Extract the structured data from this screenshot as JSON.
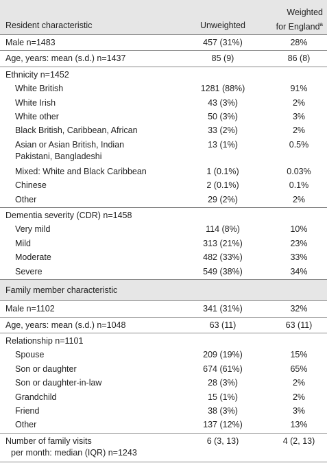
{
  "table": {
    "header": {
      "characteristic": "Resident characteristic",
      "unweighted": "Unweighted",
      "weighted": [
        "Weighted",
        "for England"
      ],
      "weighted_note": "a"
    },
    "resident": [
      {
        "label": [
          "Male n=1483"
        ],
        "unweighted": "457 (31%)",
        "weighted": "28%"
      },
      {
        "label": [
          "Age, years: mean (s.d.) n=1437"
        ],
        "unweighted": "85 (9)",
        "weighted": "86 (8)"
      },
      {
        "label": [
          "Ethnicity n=1452"
        ],
        "items": [
          {
            "label": [
              "White British"
            ],
            "unweighted": "1281 (88%)",
            "weighted": "91%"
          },
          {
            "label": [
              "White Irish"
            ],
            "unweighted": "43 (3%)",
            "weighted": "2%"
          },
          {
            "label": [
              "White other"
            ],
            "unweighted": "50 (3%)",
            "weighted": "3%"
          },
          {
            "label": [
              "Black British, Caribbean, African"
            ],
            "unweighted": "33 (2%)",
            "weighted": "2%"
          },
          {
            "label": [
              "Asian or Asian British, Indian",
              "Pakistani, Bangladeshi"
            ],
            "unweighted": "13 (1%)",
            "weighted": "0.5%"
          },
          {
            "label": [
              "Mixed: White and Black Caribbean"
            ],
            "unweighted": "1 (0.1%)",
            "weighted": "0.03%"
          },
          {
            "label": [
              "Chinese"
            ],
            "unweighted": "2 (0.1%)",
            "weighted": "0.1%"
          },
          {
            "label": [
              "Other"
            ],
            "unweighted": "29 (2%)",
            "weighted": "2%"
          }
        ]
      },
      {
        "label": [
          "Dementia severity (CDR) n=1458"
        ],
        "items": [
          {
            "label": [
              "Very mild"
            ],
            "unweighted": "114 (8%)",
            "weighted": "10%"
          },
          {
            "label": [
              "Mild"
            ],
            "unweighted": "313 (21%)",
            "weighted": "23%"
          },
          {
            "label": [
              "Moderate"
            ],
            "unweighted": "482 (33%)",
            "weighted": "33%"
          },
          {
            "label": [
              "Severe"
            ],
            "unweighted": "549 (38%)",
            "weighted": "34%"
          }
        ]
      }
    ],
    "family_header": "Family member characteristic",
    "family": [
      {
        "label": [
          "Male n=1102"
        ],
        "unweighted": "341 (31%)",
        "weighted": "32%"
      },
      {
        "label": [
          "Age, years: mean (s.d.) n=1048"
        ],
        "unweighted": "63 (11)",
        "weighted": "63 (11)"
      },
      {
        "label": [
          "Relationship n=1101"
        ],
        "items": [
          {
            "label": [
              "Spouse"
            ],
            "unweighted": "209 (19%)",
            "weighted": "15%"
          },
          {
            "label": [
              "Son or daughter"
            ],
            "unweighted": "674 (61%)",
            "weighted": "65%"
          },
          {
            "label": [
              "Son or daughter-in-law"
            ],
            "unweighted": "28 (3%)",
            "weighted": "2%"
          },
          {
            "label": [
              "Grandchild"
            ],
            "unweighted": "15 (1%)",
            "weighted": "2%"
          },
          {
            "label": [
              "Friend"
            ],
            "unweighted": "38 (3%)",
            "weighted": "3%"
          },
          {
            "label": [
              "Other"
            ],
            "unweighted": "137 (12%)",
            "weighted": "13%"
          }
        ]
      },
      {
        "label": [
          "Number of family visits",
          "per month: median (IQR) n=1243"
        ],
        "unweighted": "6 (3, 13)",
        "weighted": "4 (2, 13)"
      }
    ]
  }
}
